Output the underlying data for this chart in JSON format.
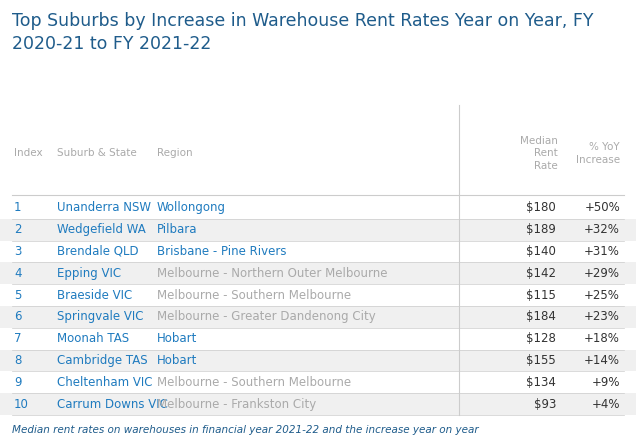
{
  "title": "Top Suburbs by Increase in Warehouse Rent Rates Year on Year, FY\n2020-21 to FY 2021-22",
  "title_color": "#1f5c8b",
  "footer": "Median rent rates on warehouses in financial year 2021-22 and the increase year on year",
  "footer_color": "#1f5c8b",
  "columns": [
    "Index",
    "Suburb & State",
    "Region",
    "Median\nRent\nRate",
    "% YoY\nIncrease"
  ],
  "col_header_color": "#aaaaaa",
  "rows": [
    [
      "1",
      "Unanderra NSW",
      "Wollongong",
      "$180",
      "+50%"
    ],
    [
      "2",
      "Wedgefield WA",
      "Pilbara",
      "$189",
      "+32%"
    ],
    [
      "3",
      "Brendale QLD",
      "Brisbane - Pine Rivers",
      "$140",
      "+31%"
    ],
    [
      "4",
      "Epping VIC",
      "Melbourne - Northern Outer Melbourne",
      "$142",
      "+29%"
    ],
    [
      "5",
      "Braeside VIC",
      "Melbourne - Southern Melbourne",
      "$115",
      "+25%"
    ],
    [
      "6",
      "Springvale VIC",
      "Melbourne - Greater Dandenong City",
      "$184",
      "+23%"
    ],
    [
      "7",
      "Moonah TAS",
      "Hobart",
      "$128",
      "+18%"
    ],
    [
      "8",
      "Cambridge TAS",
      "Hobart",
      "$155",
      "+14%"
    ],
    [
      "9",
      "Cheltenham VIC",
      "Melbourne - Southern Melbourne",
      "$134",
      "+9%"
    ],
    [
      "10",
      "Carrum Downs VIC",
      "Melbourne - Frankston City",
      "$93",
      "+4%"
    ]
  ],
  "row_colors": [
    "#ffffff",
    "#f0f0f0"
  ],
  "suburb_color": "#1f7bbf",
  "region_color_vic": "#aaaaaa",
  "region_color_other": "#1f7bbf",
  "index_color_vic": "#1f7bbf",
  "index_color_other": "#333333",
  "rent_color": "#333333",
  "yoy_color": "#333333",
  "line_color": "#cccccc",
  "background_color": "#ffffff",
  "title_fontsize": 12.5,
  "header_fontsize": 7.5,
  "row_fontsize": 8.5,
  "footer_fontsize": 7.5
}
